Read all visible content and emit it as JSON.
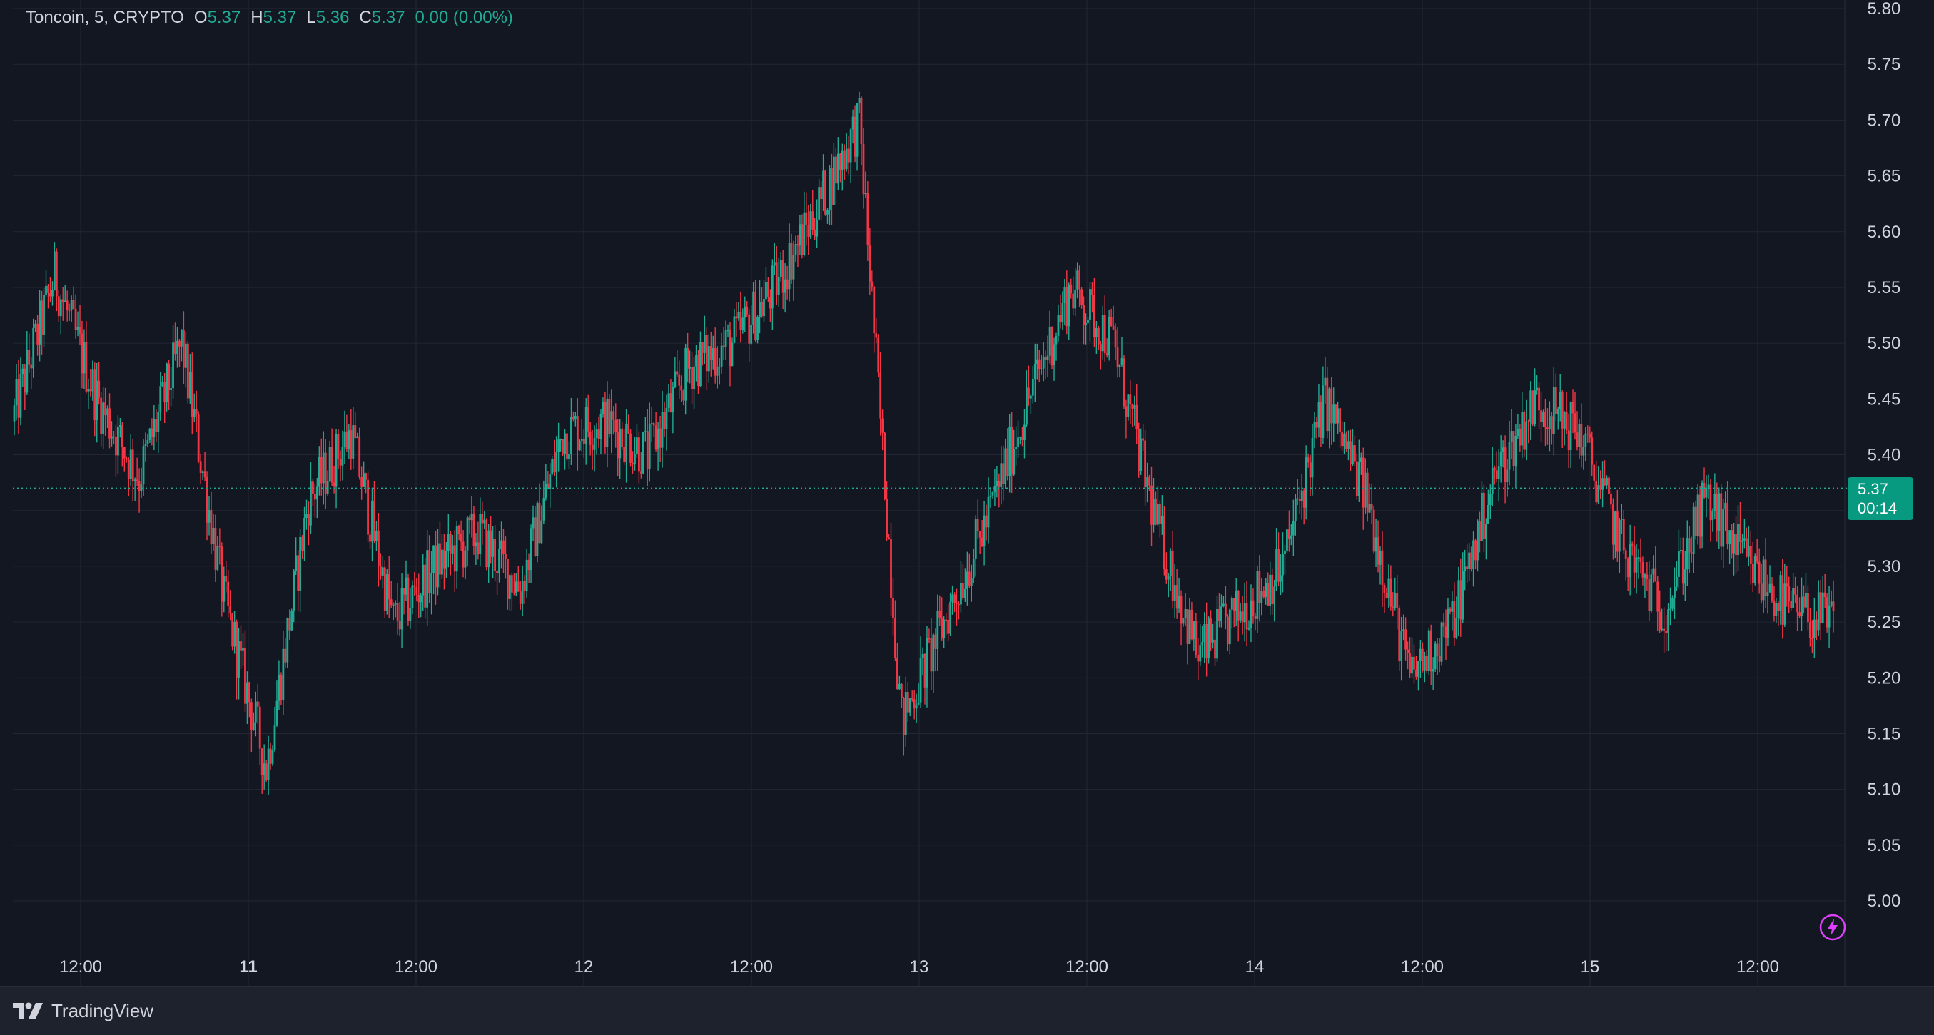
{
  "legend": {
    "symbol": "Toncoin, 5, CRYPTO",
    "open_label": "O",
    "open_value": "5.37",
    "high_label": "H",
    "high_value": "5.37",
    "low_label": "L",
    "low_value": "5.36",
    "close_label": "C",
    "close_value": "5.37",
    "change": "0.00 (0.00%)"
  },
  "price_tag": {
    "price": "5.37",
    "countdown": "00:14"
  },
  "footer": {
    "brand": "TradingView"
  },
  "colors": {
    "background": "#131722",
    "grid": "#232733",
    "up": "#22ab94",
    "down": "#f23645",
    "axis_text": "#d1d4dc",
    "price_line": "#22ab94",
    "bolt": "#e040fb"
  },
  "icons": {
    "brand_logo": "tradingview-logo-icon",
    "alert": "lightning-bolt-icon"
  },
  "chart_data": {
    "type": "candlestick",
    "title": "",
    "xlabel": "",
    "ylabel": "",
    "ylim": [
      4.96,
      5.8
    ],
    "y_ticks": [
      "5.00",
      "5.05",
      "5.10",
      "5.15",
      "5.20",
      "5.25",
      "5.30",
      "5.35",
      "5.40",
      "5.45",
      "5.50",
      "5.55",
      "5.60",
      "5.65",
      "5.70",
      "5.75",
      "5.80"
    ],
    "x_ticks": [
      "12:00",
      "11",
      "12:00",
      "12",
      "12:00",
      "13",
      "12:00",
      "14",
      "12:00",
      "15",
      "12:00"
    ],
    "x_tick_bold": [
      false,
      true,
      false,
      false,
      false,
      false,
      false,
      false,
      false,
      false,
      false
    ],
    "grid": true,
    "last_price": 5.37,
    "series": [
      {
        "x": [
          "10 06:00",
          "10 09:00",
          "10 12:00",
          "10 15:00",
          "10 18:00",
          "10 21:00",
          "11 00:00",
          "11 03:00",
          "11 06:00",
          "11 09:00",
          "11 12:00",
          "11 15:00",
          "11 18:00",
          "11 21:00",
          "12 00:00",
          "12 03:00",
          "12 06:00",
          "12 09:00",
          "12 12:00",
          "12 15:00",
          "12 18:00",
          "12 21:00",
          "13 00:00",
          "13 03:00",
          "13 06:00",
          "13 09:00",
          "13 12:00",
          "13 15:00",
          "13 18:00",
          "13 21:00",
          "14 00:00",
          "14 03:00",
          "14 06:00",
          "14 09:00",
          "14 12:00",
          "14 15:00",
          "14 18:00",
          "14 21:00",
          "15 00:00",
          "15 03:00",
          "15 06:00",
          "15 09:00",
          "15 12:00",
          "15 15:00"
        ],
        "values": [
          5.43,
          5.56,
          5.45,
          5.38,
          5.5,
          5.27,
          5.12,
          5.36,
          5.42,
          5.25,
          5.3,
          5.33,
          5.28,
          5.42,
          5.43,
          5.4,
          5.48,
          5.5,
          5.55,
          5.62,
          5.7,
          5.16,
          5.25,
          5.34,
          5.45,
          5.55,
          5.5,
          5.34,
          5.22,
          5.26,
          5.3,
          5.45,
          5.36,
          5.2,
          5.25,
          5.38,
          5.45,
          5.42,
          5.32,
          5.26,
          5.36,
          5.3,
          5.26,
          5.25
        ]
      }
    ]
  }
}
